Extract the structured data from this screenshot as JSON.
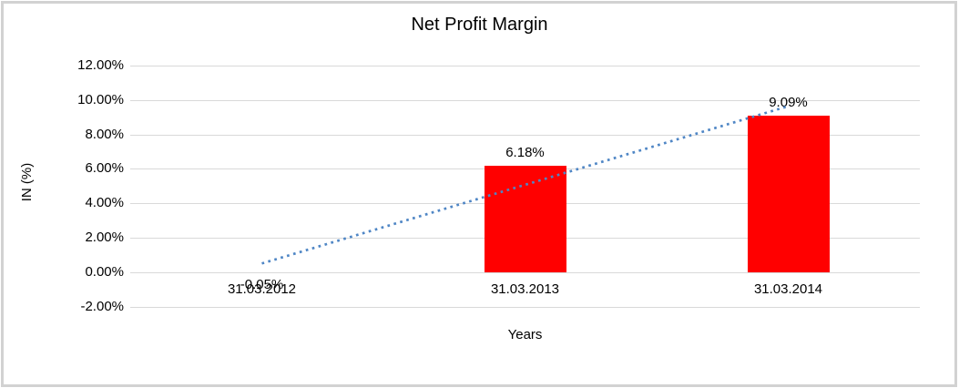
{
  "chart_data": {
    "type": "bar",
    "title": "Net Profit Margin",
    "xlabel": "Years",
    "ylabel": "IN (%)",
    "categories": [
      "31.03.2012",
      "31.03.2013",
      "31.03.2014"
    ],
    "values": [
      -0.05,
      6.18,
      9.09
    ],
    "data_labels": [
      "-0.05%",
      "6.18%",
      "9.09%"
    ],
    "y_ticks": [
      {
        "value": 12,
        "label": "12.00%"
      },
      {
        "value": 10,
        "label": "10.00%"
      },
      {
        "value": 8,
        "label": "8.00%"
      },
      {
        "value": 6,
        "label": "6.00%"
      },
      {
        "value": 4,
        "label": "4.00%"
      },
      {
        "value": 2,
        "label": "2.00%"
      },
      {
        "value": 0,
        "label": "0.00%"
      },
      {
        "value": -2,
        "label": "-2.00%"
      }
    ],
    "ylim": [
      -2,
      12
    ],
    "grid": true,
    "legend": "none",
    "colors": {
      "bar": "#FF0000",
      "gridline": "#D9D9D9",
      "trendline": "#4F86C5",
      "text": "#000000",
      "frame_border": "#D2D2D2"
    },
    "trendline": {
      "type": "linear",
      "style": "dotted",
      "points": [
        {
          "category_index": 0,
          "value": 0.5
        },
        {
          "category_index": 2,
          "value": 9.64
        }
      ]
    }
  }
}
